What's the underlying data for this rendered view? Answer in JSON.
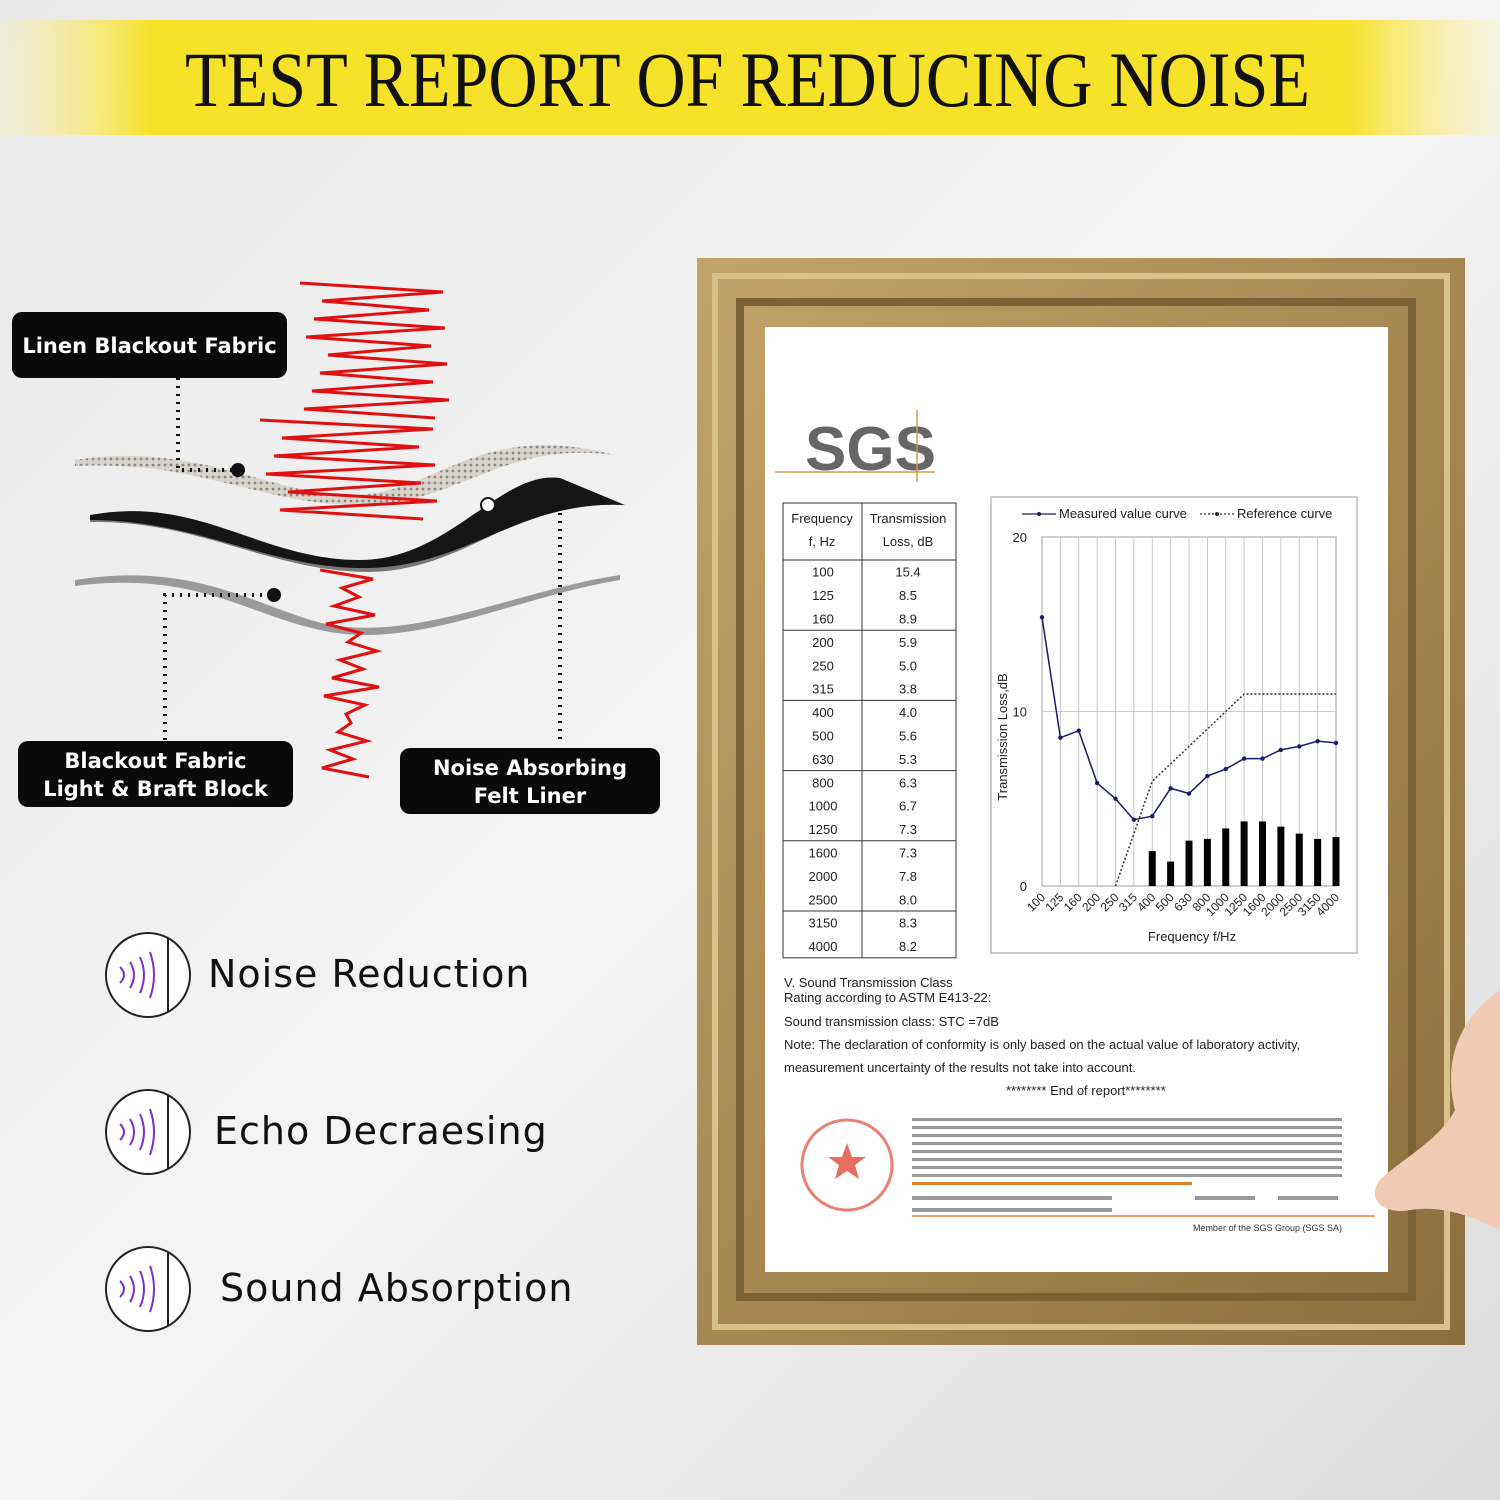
{
  "title": "TEST REPORT OF REDUCING NOISE",
  "layers": [
    {
      "lines": [
        "Linen Blackout Fabric"
      ]
    },
    {
      "lines": [
        "Blackout Fabric",
        "Light & Braft Block"
      ]
    },
    {
      "lines": [
        "Noise Absorbing",
        "Felt Liner"
      ]
    }
  ],
  "features": [
    "Noise Reduction",
    "Echo Decraesing",
    "Sound Absorption"
  ],
  "report": {
    "logo": "SGS",
    "table": {
      "headers": [
        [
          "Frequency",
          "f, Hz"
        ],
        [
          "Transmission",
          "Loss, dB"
        ]
      ],
      "rows": [
        [
          "100",
          "15.4"
        ],
        [
          "125",
          "8.5"
        ],
        [
          "160",
          "8.9"
        ],
        [
          "200",
          "5.9"
        ],
        [
          "250",
          "5.0"
        ],
        [
          "315",
          "3.8"
        ],
        [
          "400",
          "4.0"
        ],
        [
          "500",
          "5.6"
        ],
        [
          "630",
          "5.3"
        ],
        [
          "800",
          "6.3"
        ],
        [
          "1000",
          "6.7"
        ],
        [
          "1250",
          "7.3"
        ],
        [
          "1600",
          "7.3"
        ],
        [
          "2000",
          "7.8"
        ],
        [
          "2500",
          "8.0"
        ],
        [
          "3150",
          "8.3"
        ],
        [
          "4000",
          "8.2"
        ]
      ]
    },
    "text": [
      "V.    Sound Transmission Class",
      "Rating according to ASTM E413-22:",
      "Sound transmission class: STC =7dB",
      "Note: The declaration of conformity is only based on the actual value of laboratory activity,",
      "measurement uncertainty of the results not take into account.",
      "******** End of report********"
    ],
    "footer": "Member of the SGS Group (SGS SA)"
  },
  "chart_data": {
    "type": "line",
    "x_label": "Frequency f/Hz",
    "y_label": "Transmission Loss,dB",
    "categories": [
      "100",
      "125",
      "160",
      "200",
      "250",
      "315",
      "400",
      "500",
      "630",
      "800",
      "1000",
      "1250",
      "1600",
      "2000",
      "2500",
      "3150",
      "4000"
    ],
    "ylim": [
      0,
      20
    ],
    "yticks": [
      0,
      10,
      20
    ],
    "grid": true,
    "series": [
      {
        "name": "Measured value curve",
        "color": "#1a1a6e",
        "style": "solid",
        "values": [
          15.4,
          8.5,
          8.9,
          5.9,
          5.0,
          3.8,
          4.0,
          5.6,
          5.3,
          6.3,
          6.7,
          7.3,
          7.3,
          7.8,
          8.0,
          8.3,
          8.2
        ]
      },
      {
        "name": "Reference curve",
        "color": "#333333",
        "style": "dotted",
        "values": [
          null,
          null,
          null,
          null,
          0,
          3,
          6,
          7,
          8,
          9,
          10,
          11,
          11,
          11,
          11,
          11,
          11
        ]
      }
    ],
    "bars": {
      "color": "#000000",
      "values": [
        null,
        null,
        null,
        null,
        null,
        null,
        2.0,
        1.4,
        2.6,
        2.7,
        3.3,
        3.7,
        3.7,
        3.4,
        3.0,
        2.7,
        2.8
      ]
    }
  }
}
